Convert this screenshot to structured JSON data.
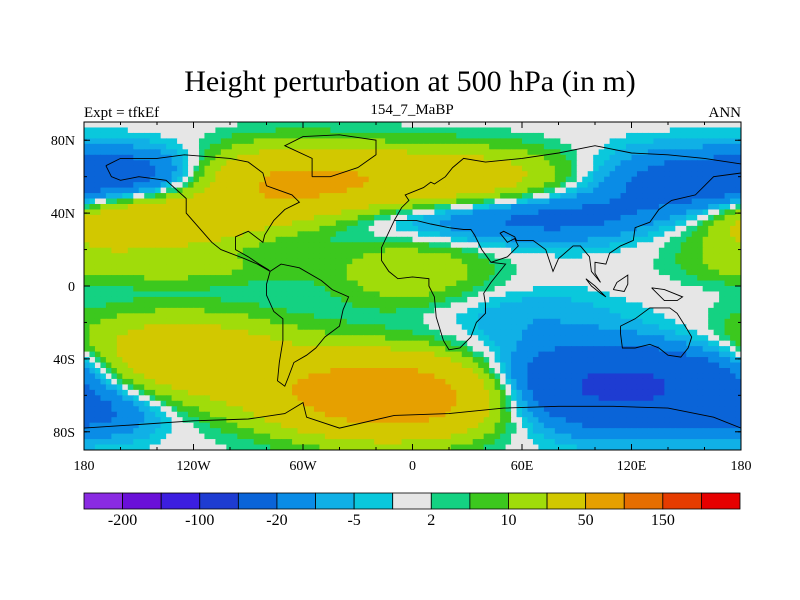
{
  "chart_data": {
    "type": "heatmap",
    "title": "Height perturbation at 500 hPa (in m)",
    "left_string": "Expt = tfkEf",
    "center_string": "154_7_MaBP",
    "right_string": "ANN",
    "x_ticks": [
      {
        "value": -180,
        "label": "180"
      },
      {
        "value": -120,
        "label": "120W"
      },
      {
        "value": -60,
        "label": "60W"
      },
      {
        "value": 0,
        "label": "0"
      },
      {
        "value": 60,
        "label": "60E"
      },
      {
        "value": 120,
        "label": "120E"
      },
      {
        "value": 180,
        "label": "180"
      }
    ],
    "y_ticks": [
      {
        "value": 80,
        "label": "80N"
      },
      {
        "value": 40,
        "label": "40N"
      },
      {
        "value": 0,
        "label": "0"
      },
      {
        "value": -40,
        "label": "40S"
      },
      {
        "value": -80,
        "label": "80S"
      }
    ],
    "xlim": [
      -180,
      180
    ],
    "ylim": [
      -90,
      90
    ],
    "contour_levels": [
      -200,
      -150,
      -100,
      -50,
      -20,
      -10,
      -5,
      -2,
      2,
      5,
      10,
      20,
      50,
      100,
      150,
      200
    ],
    "colorbar_labels": [
      {
        "level": -200,
        "label": "-200"
      },
      {
        "level": -100,
        "label": "-100"
      },
      {
        "level": -20,
        "label": "-20"
      },
      {
        "level": -5,
        "label": "-5"
      },
      {
        "level": 2,
        "label": "2"
      },
      {
        "level": 10,
        "label": "10"
      },
      {
        "level": 50,
        "label": "50"
      },
      {
        "level": 150,
        "label": "150"
      }
    ],
    "colors": [
      "#8a2be2",
      "#6a10d8",
      "#3c1ee0",
      "#1e3cd2",
      "#0a64d8",
      "#0a8ce6",
      "#10b0e6",
      "#0ac8dc",
      "#e6e6e6",
      "#14d282",
      "#3cc81e",
      "#a0dc0a",
      "#d2c800",
      "#e6a000",
      "#e66e00",
      "#e63c00",
      "#e60000"
    ],
    "field_blobs": [
      {
        "lon": -150,
        "lat": 62,
        "amp": -22,
        "slon": 28,
        "slat": 10
      },
      {
        "lon": -160,
        "lat": 35,
        "amp": 55,
        "slon": 45,
        "slat": 10
      },
      {
        "lon": -70,
        "lat": 55,
        "amp": 45,
        "slon": 35,
        "slat": 14
      },
      {
        "lon": 10,
        "lat": 58,
        "amp": 40,
        "slon": 55,
        "slat": 12
      },
      {
        "lon": 75,
        "lat": 38,
        "amp": -28,
        "slon": 75,
        "slat": 10
      },
      {
        "lon": 150,
        "lat": 58,
        "amp": -30,
        "slon": 40,
        "slat": 12
      },
      {
        "lon": 170,
        "lat": 35,
        "amp": -15,
        "slon": 25,
        "slat": 10
      },
      {
        "lon": -130,
        "lat": 10,
        "amp": 12,
        "slon": 45,
        "slat": 7
      },
      {
        "lon": 0,
        "lat": 8,
        "amp": 18,
        "slon": 30,
        "slat": 14
      },
      {
        "lon": 175,
        "lat": 15,
        "amp": 8,
        "slon": 20,
        "slat": 8
      },
      {
        "lon": -130,
        "lat": -40,
        "amp": 42,
        "slon": 45,
        "slat": 16
      },
      {
        "lon": -10,
        "lat": -60,
        "amp": 90,
        "slon": 45,
        "slat": 15
      },
      {
        "lon": 110,
        "lat": -55,
        "amp": -60,
        "slon": 55,
        "slat": 16
      },
      {
        "lon": 60,
        "lat": -15,
        "amp": -8,
        "slon": 35,
        "slat": 10
      },
      {
        "lon": -170,
        "lat": -70,
        "amp": -15,
        "slon": 25,
        "slat": 10
      },
      {
        "lon": 175,
        "lat": -45,
        "amp": -10,
        "slon": 20,
        "slat": 10
      }
    ],
    "coastlines": [
      [
        [
          -168,
          66
        ],
        [
          -160,
          70
        ],
        [
          -140,
          70
        ],
        [
          -125,
          72
        ],
        [
          -100,
          70
        ],
        [
          -90,
          68
        ],
        [
          -82,
          62
        ],
        [
          -80,
          55
        ],
        [
          -66,
          50
        ],
        [
          -62,
          46
        ],
        [
          -70,
          42
        ],
        [
          -76,
          36
        ],
        [
          -81,
          28
        ],
        [
          -82,
          24
        ],
        [
          -90,
          30
        ],
        [
          -97,
          27
        ],
        [
          -97,
          20
        ],
        [
          -90,
          16
        ],
        [
          -84,
          12
        ],
        [
          -79,
          9
        ],
        [
          -78,
          8
        ],
        [
          -85,
          12
        ],
        [
          -92,
          15
        ],
        [
          -105,
          20
        ],
        [
          -110,
          24
        ],
        [
          -117,
          32
        ],
        [
          -124,
          40
        ],
        [
          -124,
          48
        ],
        [
          -135,
          58
        ],
        [
          -150,
          60
        ],
        [
          -160,
          58
        ],
        [
          -165,
          60
        ],
        [
          -168,
          66
        ]
      ],
      [
        [
          -78,
          8
        ],
        [
          -72,
          12
        ],
        [
          -62,
          10
        ],
        [
          -50,
          3
        ],
        [
          -44,
          -2
        ],
        [
          -35,
          -6
        ],
        [
          -38,
          -13
        ],
        [
          -40,
          -22
        ],
        [
          -48,
          -28
        ],
        [
          -53,
          -34
        ],
        [
          -58,
          -38
        ],
        [
          -65,
          -42
        ],
        [
          -68,
          -50
        ],
        [
          -70,
          -55
        ],
        [
          -74,
          -52
        ],
        [
          -73,
          -42
        ],
        [
          -71,
          -30
        ],
        [
          -71,
          -18
        ],
        [
          -76,
          -14
        ],
        [
          -80,
          -5
        ],
        [
          -80,
          1
        ],
        [
          -78,
          8
        ]
      ],
      [
        [
          -10,
          36
        ],
        [
          -6,
          43
        ],
        [
          -2,
          47
        ],
        [
          -4,
          50
        ],
        [
          6,
          54
        ],
        [
          10,
          57
        ],
        [
          12,
          56
        ],
        [
          18,
          60
        ],
        [
          22,
          65
        ],
        [
          28,
          70
        ],
        [
          40,
          68
        ],
        [
          60,
          70
        ],
        [
          80,
          73
        ],
        [
          100,
          77
        ],
        [
          120,
          73
        ],
        [
          140,
          72
        ],
        [
          160,
          70
        ],
        [
          180,
          67
        ]
      ],
      [
        [
          180,
          62
        ],
        [
          165,
          60
        ],
        [
          160,
          55
        ],
        [
          155,
          50
        ],
        [
          142,
          47
        ],
        [
          135,
          42
        ],
        [
          130,
          35
        ],
        [
          122,
          32
        ],
        [
          121,
          25
        ],
        [
          114,
          22
        ],
        [
          108,
          18
        ],
        [
          106,
          12
        ],
        [
          100,
          13
        ],
        [
          100,
          7
        ],
        [
          103,
          2
        ],
        [
          98,
          8
        ],
        [
          97,
          16
        ],
        [
          92,
          22
        ],
        [
          88,
          22
        ],
        [
          80,
          15
        ],
        [
          77,
          8
        ],
        [
          73,
          20
        ],
        [
          66,
          25
        ],
        [
          57,
          25
        ],
        [
          56,
          27
        ],
        [
          50,
          30
        ],
        [
          48,
          29
        ],
        [
          52,
          24
        ],
        [
          56,
          26
        ],
        [
          58,
          22
        ],
        [
          52,
          16
        ],
        [
          43,
          13
        ],
        [
          38,
          20
        ],
        [
          34,
          28
        ],
        [
          32,
          31
        ],
        [
          28,
          31
        ],
        [
          20,
          32
        ],
        [
          10,
          34
        ],
        [
          2,
          36
        ],
        [
          -5,
          36
        ],
        [
          -10,
          36
        ]
      ],
      [
        [
          -10,
          36
        ],
        [
          -17,
          21
        ],
        [
          -17,
          14
        ],
        [
          -13,
          8
        ],
        [
          -8,
          4
        ],
        [
          0,
          5
        ],
        [
          9,
          4
        ],
        [
          9,
          0
        ],
        [
          12,
          -6
        ],
        [
          13,
          -17
        ],
        [
          17,
          -30
        ],
        [
          20,
          -35
        ],
        [
          26,
          -34
        ],
        [
          32,
          -28
        ],
        [
          35,
          -20
        ],
        [
          40,
          -15
        ],
        [
          40,
          -10
        ],
        [
          39,
          -4
        ],
        [
          43,
          2
        ],
        [
          51,
          12
        ],
        [
          43,
          13
        ]
      ],
      [
        [
          114,
          -22
        ],
        [
          122,
          -18
        ],
        [
          130,
          -12
        ],
        [
          137,
          -12
        ],
        [
          141,
          -12
        ],
        [
          145,
          -15
        ],
        [
          150,
          -23
        ],
        [
          153,
          -28
        ],
        [
          151,
          -34
        ],
        [
          147,
          -39
        ],
        [
          140,
          -38
        ],
        [
          135,
          -34
        ],
        [
          130,
          -32
        ],
        [
          122,
          -34
        ],
        [
          115,
          -34
        ],
        [
          114,
          -26
        ],
        [
          114,
          -22
        ]
      ],
      [
        [
          -55,
          60
        ],
        [
          -45,
          60
        ],
        [
          -30,
          65
        ],
        [
          -20,
          72
        ],
        [
          -20,
          80
        ],
        [
          -40,
          83
        ],
        [
          -60,
          82
        ],
        [
          -70,
          77
        ],
        [
          -55,
          70
        ],
        [
          -55,
          60
        ]
      ],
      [
        [
          -180,
          -78
        ],
        [
          -150,
          -76
        ],
        [
          -120,
          -74
        ],
        [
          -90,
          -73
        ],
        [
          -70,
          -70
        ],
        [
          -60,
          -64
        ],
        [
          -58,
          -72
        ],
        [
          -40,
          -78
        ],
        [
          -10,
          -71
        ],
        [
          20,
          -70
        ],
        [
          50,
          -67
        ],
        [
          80,
          -66
        ],
        [
          110,
          -66
        ],
        [
          140,
          -67
        ],
        [
          165,
          -72
        ],
        [
          180,
          -78
        ]
      ],
      [
        [
          95,
          4
        ],
        [
          100,
          0
        ],
        [
          106,
          -6
        ],
        [
          103,
          -4
        ],
        [
          98,
          0
        ],
        [
          95,
          4
        ]
      ],
      [
        [
          110,
          -2
        ],
        [
          112,
          2
        ],
        [
          118,
          6
        ],
        [
          118,
          1
        ],
        [
          116,
          -3
        ],
        [
          110,
          -2
        ]
      ],
      [
        [
          131,
          -1
        ],
        [
          138,
          -2
        ],
        [
          148,
          -6
        ],
        [
          145,
          -8
        ],
        [
          138,
          -8
        ],
        [
          131,
          -1
        ]
      ]
    ]
  }
}
